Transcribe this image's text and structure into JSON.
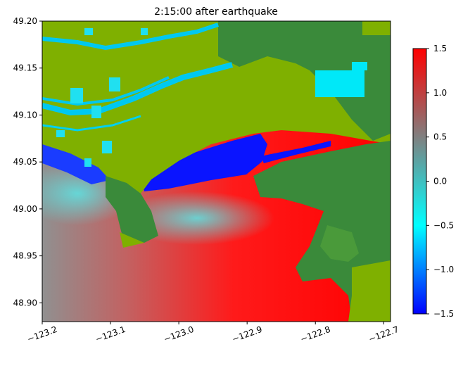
{
  "chart_data": {
    "type": "heatmap",
    "title": "2:15:00 after earthquake",
    "xlabel": "",
    "ylabel": "",
    "xlim": [
      -123.2,
      -122.69
    ],
    "ylim": [
      48.88,
      49.2
    ],
    "x_ticks": [
      -123.2,
      -123.1,
      -123.0,
      -122.9,
      -122.8,
      -122.7
    ],
    "x_tick_labels": [
      "−123.2",
      "−123.1",
      "−123.0",
      "−122.9",
      "−122.8",
      "−122.7"
    ],
    "y_ticks": [
      48.9,
      48.95,
      49.0,
      49.05,
      49.1,
      49.15,
      49.2
    ],
    "y_tick_labels": [
      "48.90",
      "48.95",
      "49.00",
      "49.05",
      "49.10",
      "49.15",
      "49.20"
    ],
    "colorbar": {
      "min": -1.5,
      "max": 1.5,
      "ticks": [
        -1.5,
        -1.0,
        -0.5,
        0.0,
        0.5,
        1.0,
        1.5
      ],
      "tick_labels": [
        "−1.5",
        "−1.0",
        "−0.5",
        "0.0",
        "0.5",
        "1.0",
        "1.5"
      ],
      "colors": [
        "#0000ff",
        "#00ffff",
        "#808080",
        "#ff0000"
      ]
    },
    "land_colors": {
      "low": "#7fb000",
      "high": "#3a8a3a"
    },
    "grid": false
  }
}
